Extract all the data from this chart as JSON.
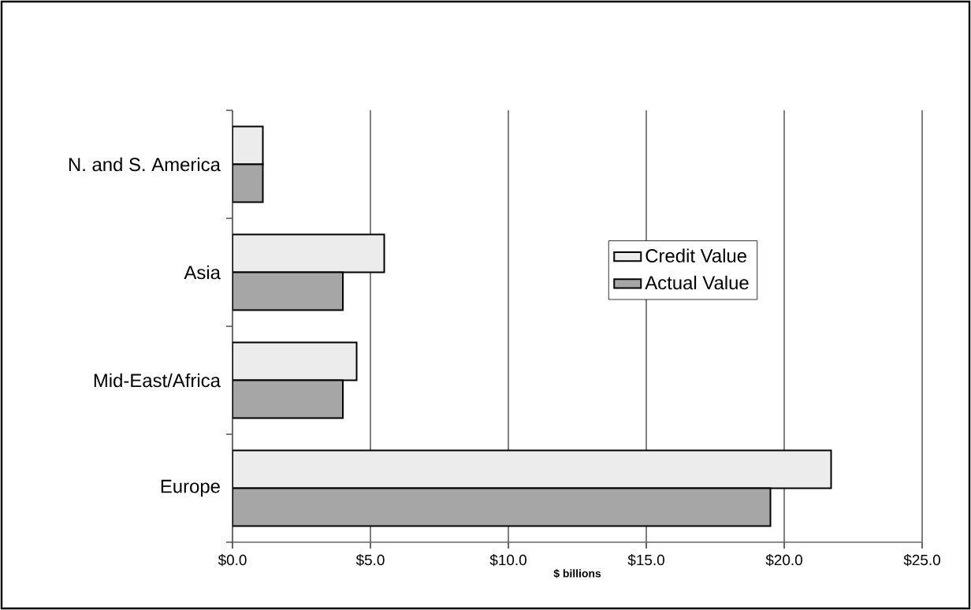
{
  "chart_data": {
    "type": "bar",
    "orientation": "horizontal",
    "xlabel": "**$ billions**",
    "categories": [
      "N. and S. America",
      "Asia",
      "Mid-East/Africa",
      "Europe"
    ],
    "series": [
      {
        "name": "Credit Value",
        "color": "#ececec",
        "values": [
          1.1,
          5.5,
          4.5,
          21.7
        ]
      },
      {
        "name": "Actual Value",
        "color": "#a6a6a6",
        "values": [
          1.1,
          4.0,
          4.0,
          19.5
        ]
      }
    ],
    "xlim": [
      0,
      25
    ],
    "xticks": [
      {
        "value": 0,
        "label": "$0.0"
      },
      {
        "value": 5,
        "label": "$5.0"
      },
      {
        "value": 10,
        "label": "$10.0"
      },
      {
        "value": 15,
        "label": "$15.0"
      },
      {
        "value": 20,
        "label": "$20.0"
      },
      {
        "value": 25,
        "label": "$25.0"
      }
    ],
    "grid": "x",
    "legend": "right"
  }
}
